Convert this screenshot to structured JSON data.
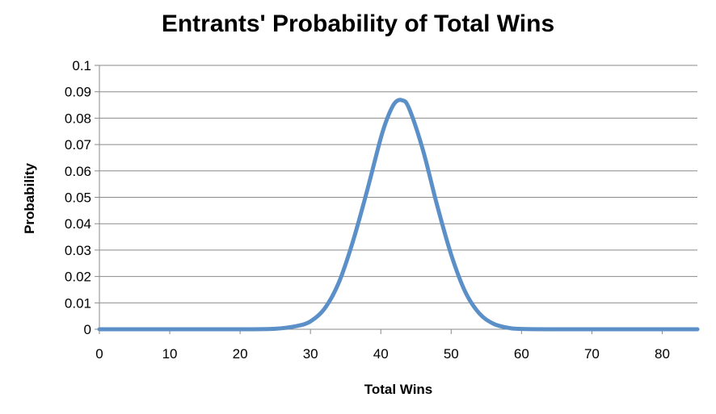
{
  "chart_data": {
    "type": "line",
    "title": "Entrants' Probability of Total Wins",
    "xlabel": "Total Wins",
    "ylabel": "Probability",
    "xlim": [
      0,
      85
    ],
    "ylim": [
      0,
      0.1
    ],
    "x_ticks": [
      "0",
      "10",
      "20",
      "30",
      "40",
      "50",
      "60",
      "70",
      "80"
    ],
    "y_ticks": [
      "0",
      "0.01",
      "0.02",
      "0.03",
      "0.04",
      "0.05",
      "0.06",
      "0.07",
      "0.08",
      "0.09",
      "0.1"
    ],
    "grid": true,
    "legend": "none",
    "series_color": "#5b8fc7",
    "series": [
      {
        "x": [
          0,
          5,
          10,
          15,
          20,
          25,
          28,
          30,
          32,
          34,
          36,
          38,
          40,
          41,
          42,
          43,
          44,
          46,
          48,
          50,
          52,
          54,
          56,
          58,
          60,
          65,
          70,
          75,
          80,
          85
        ],
        "values": [
          0,
          0,
          0,
          0,
          0,
          0.0002,
          0.0012,
          0.003,
          0.0078,
          0.0175,
          0.033,
          0.052,
          0.0725,
          0.0805,
          0.0858,
          0.0868,
          0.0838,
          0.0678,
          0.047,
          0.0283,
          0.0142,
          0.006,
          0.0021,
          0.0006,
          0.0001,
          0,
          0,
          0,
          0,
          0
        ]
      }
    ]
  }
}
